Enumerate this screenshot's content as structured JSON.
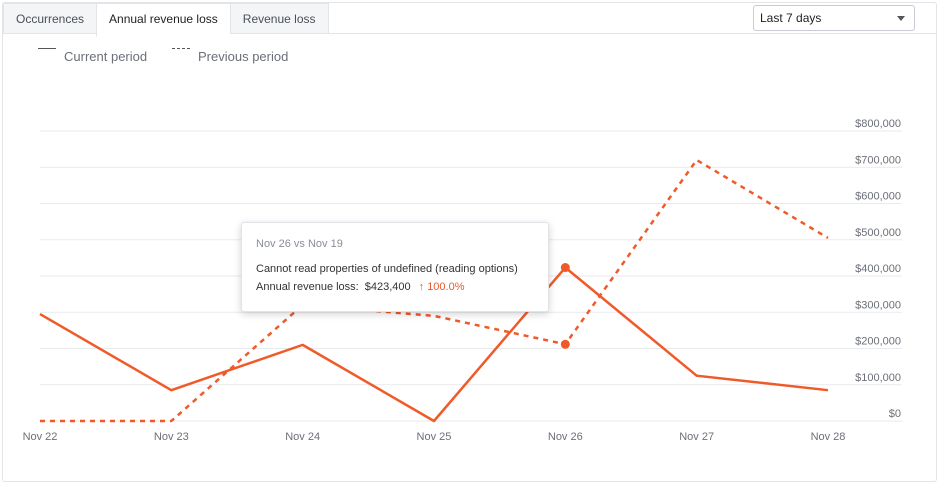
{
  "tabs": [
    {
      "label": "Occurrences",
      "active": false
    },
    {
      "label": "Annual revenue loss",
      "active": true
    },
    {
      "label": "Revenue loss",
      "active": false
    }
  ],
  "period_select": {
    "value": "Last 7 days"
  },
  "legend": {
    "current": "Current period",
    "previous": "Previous period"
  },
  "tooltip": {
    "date": "Nov 26 vs Nov 19",
    "title": "Cannot read properties of undefined (reading options)",
    "metric_label": "Annual revenue loss:",
    "metric_value": "$423,400",
    "change_arrow": "↑",
    "change": "100.0%"
  },
  "colors": {
    "accent": "#f05a28",
    "grid": "#e9eaee",
    "axis_text": "#6b6f78",
    "change_up": "#e85a2c"
  },
  "chart_data": {
    "type": "line",
    "x": [
      "Nov 22",
      "Nov 23",
      "Nov 24",
      "Nov 25",
      "Nov 26",
      "Nov 27",
      "Nov 28"
    ],
    "ylim": [
      0,
      800000
    ],
    "yticks": [
      0,
      100000,
      200000,
      300000,
      400000,
      500000,
      600000,
      700000,
      800000
    ],
    "ytick_labels": [
      "$0",
      "$100,000",
      "$200,000",
      "$300,000",
      "$400,000",
      "$500,000",
      "$600,000",
      "$700,000",
      "$800,000"
    ],
    "series": [
      {
        "name": "Current period",
        "style": "solid",
        "values": [
          295000,
          85000,
          210000,
          0,
          423400,
          125000,
          85000
        ]
      },
      {
        "name": "Previous period",
        "style": "dashed",
        "values": [
          0,
          0,
          320000,
          290000,
          211700,
          720000,
          505000
        ]
      }
    ],
    "highlight_index": 4
  }
}
